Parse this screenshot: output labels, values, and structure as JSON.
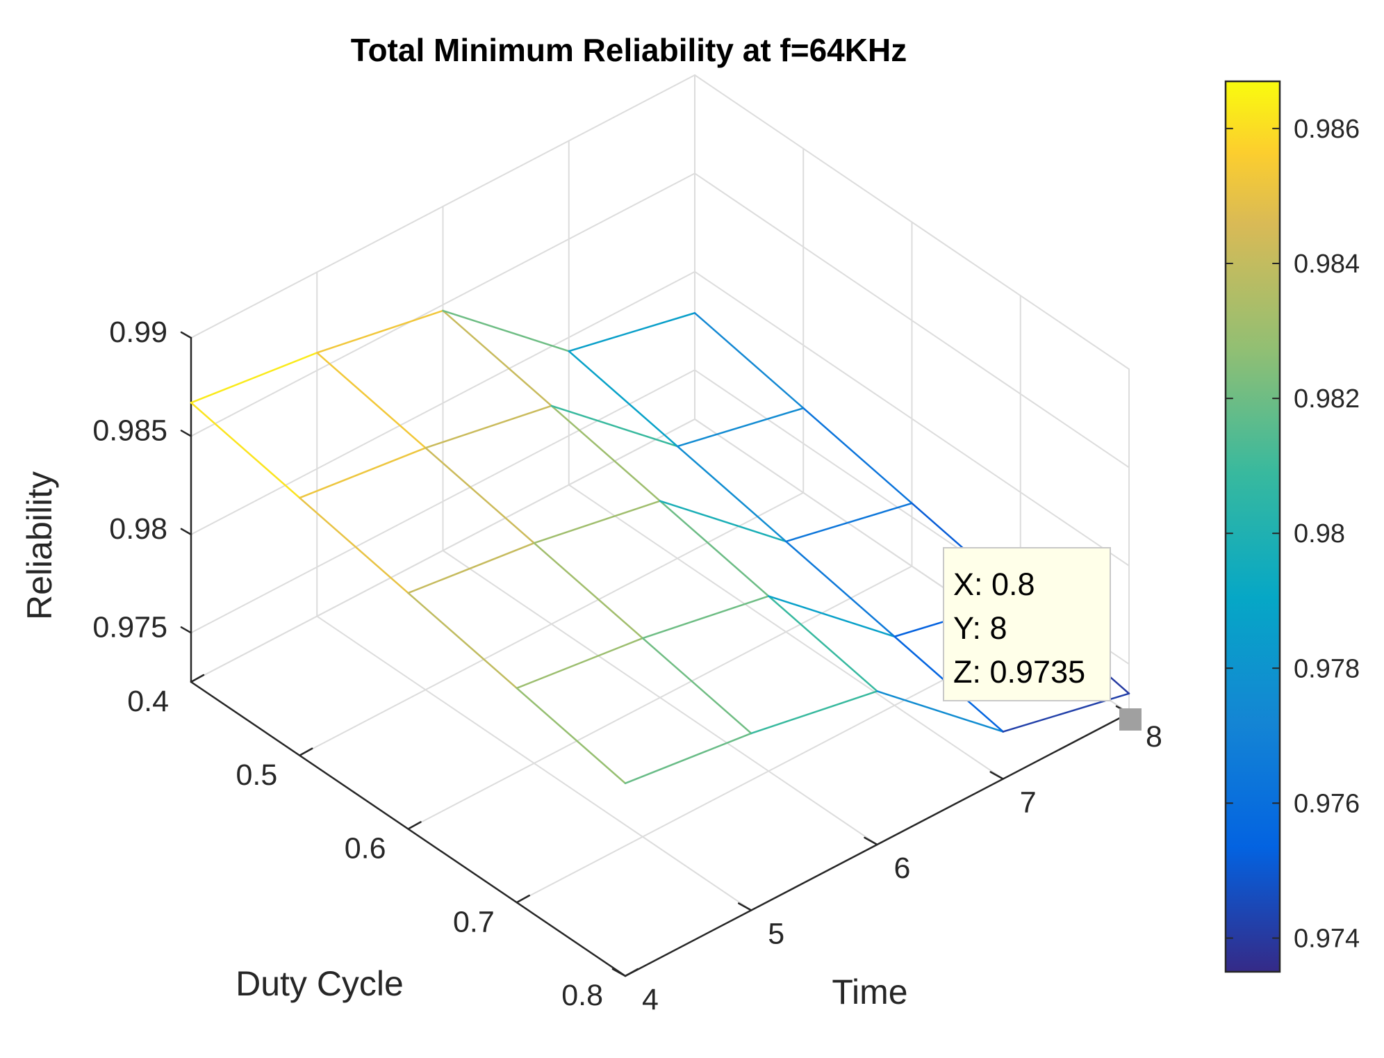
{
  "chart_data": {
    "type": "surface-mesh-3d",
    "title": "Total Minimum Reliability at f=64KHz",
    "xlabel": "Duty Cycle",
    "ylabel": "Time",
    "zlabel": "Reliability",
    "x": [
      0.4,
      0.5,
      0.6,
      0.7,
      0.8
    ],
    "y": [
      4,
      5,
      6,
      7,
      8
    ],
    "z": [
      [
        0.9867,
        0.9856,
        0.9845,
        0.9834,
        0.9823
      ],
      [
        0.9859,
        0.9848,
        0.9837,
        0.9826,
        0.9815
      ],
      [
        0.9847,
        0.9836,
        0.9825,
        0.9814,
        0.9803
      ],
      [
        0.9793,
        0.9782,
        0.9771,
        0.976,
        0.9749
      ],
      [
        0.9779,
        0.9768,
        0.9757,
        0.9746,
        0.9735
      ]
    ],
    "xlim": [
      0.4,
      0.8
    ],
    "ylim": [
      4,
      8
    ],
    "zlim": [
      0.9725,
      0.99
    ],
    "x_ticks": [
      "0.4",
      "0.5",
      "0.6",
      "0.7",
      "0.8"
    ],
    "y_ticks": [
      "4",
      "5",
      "6",
      "7",
      "8"
    ],
    "z_ticks": [
      "0.975",
      "0.98",
      "0.985",
      "0.99"
    ],
    "grid": true,
    "colormap": "parula",
    "colorbar": {
      "limits": [
        0.9735,
        0.9867
      ],
      "ticks": [
        "0.974",
        "0.976",
        "0.978",
        "0.98",
        "0.982",
        "0.984",
        "0.986"
      ]
    },
    "datatip": {
      "x_text": "X: 0.8",
      "y_text": "Y: 8",
      "z_text": "Z: 0.9735"
    }
  }
}
